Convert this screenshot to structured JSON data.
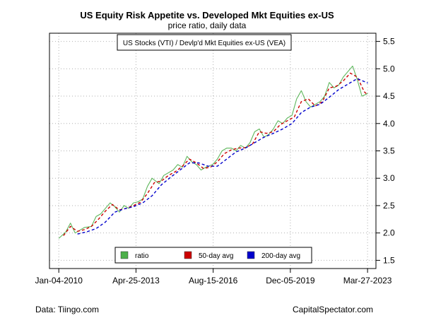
{
  "chart_data": {
    "type": "line",
    "title": "US Equity Risk Appetite vs. Developed Mkt Equities ex-US",
    "subtitle": "price ratio, daily data",
    "annotation": "US Stocks (VTI) / Devlp'd Mkt Equities ex-US (VEA)",
    "xlabel": "",
    "ylabel": "",
    "x_ticks": [
      "Jan-04-2010",
      "Apr-25-2013",
      "Aug-15-2016",
      "Dec-05-2019",
      "Mar-27-2023"
    ],
    "y_ticks": [
      1.5,
      2.0,
      2.5,
      3.0,
      3.5,
      4.0,
      4.5,
      5.0,
      5.5
    ],
    "ylim": [
      1.35,
      5.65
    ],
    "xlim": [
      2009.6,
      2023.6
    ],
    "grid": true,
    "legend_position": "bottom-center",
    "series": [
      {
        "name": "ratio",
        "color": "#4daf4a",
        "x": [
          2010.0,
          2010.3,
          2010.5,
          2010.7,
          2010.9,
          2011.1,
          2011.4,
          2011.6,
          2011.8,
          2012.0,
          2012.2,
          2012.4,
          2012.6,
          2012.8,
          2013.0,
          2013.2,
          2013.4,
          2013.6,
          2013.8,
          2014.0,
          2014.3,
          2014.5,
          2014.7,
          2014.9,
          2015.1,
          2015.3,
          2015.5,
          2015.7,
          2015.9,
          2016.1,
          2016.3,
          2016.6,
          2016.8,
          2017.0,
          2017.2,
          2017.4,
          2017.6,
          2017.8,
          2018.0,
          2018.2,
          2018.4,
          2018.6,
          2018.8,
          2019.0,
          2019.2,
          2019.4,
          2019.6,
          2019.8,
          2020.0,
          2020.2,
          2020.4,
          2020.6,
          2020.8,
          2021.0,
          2021.2,
          2021.4,
          2021.6,
          2021.8,
          2022.0,
          2022.2,
          2022.4,
          2022.6,
          2022.8,
          2023.0,
          2023.25
        ],
        "values": [
          1.9,
          2.02,
          2.18,
          2.0,
          2.05,
          2.1,
          2.12,
          2.3,
          2.35,
          2.45,
          2.55,
          2.48,
          2.38,
          2.5,
          2.45,
          2.55,
          2.57,
          2.62,
          2.85,
          3.0,
          2.9,
          3.05,
          3.1,
          3.15,
          3.25,
          3.2,
          3.4,
          3.3,
          3.25,
          3.15,
          3.2,
          3.25,
          3.35,
          3.5,
          3.55,
          3.55,
          3.5,
          3.6,
          3.55,
          3.65,
          3.85,
          3.9,
          3.75,
          3.8,
          3.9,
          4.05,
          4.0,
          4.1,
          4.15,
          4.45,
          4.6,
          4.4,
          4.3,
          4.35,
          4.4,
          4.5,
          4.75,
          4.65,
          4.7,
          4.85,
          4.95,
          5.05,
          4.8,
          4.5,
          4.55
        ]
      },
      {
        "name": "50-day avg",
        "color": "#cc0000",
        "x": [
          2010.2,
          2010.5,
          2010.8,
          2011.1,
          2011.4,
          2011.7,
          2012.0,
          2012.3,
          2012.6,
          2012.9,
          2013.2,
          2013.5,
          2013.8,
          2014.1,
          2014.4,
          2014.7,
          2015.0,
          2015.3,
          2015.6,
          2015.9,
          2016.2,
          2016.5,
          2016.8,
          2017.1,
          2017.4,
          2017.7,
          2018.0,
          2018.3,
          2018.6,
          2018.9,
          2019.2,
          2019.5,
          2019.8,
          2020.1,
          2020.4,
          2020.7,
          2021.0,
          2021.3,
          2021.6,
          2021.9,
          2022.2,
          2022.5,
          2022.8,
          2023.1,
          2023.25
        ],
        "values": [
          1.95,
          2.12,
          2.03,
          2.06,
          2.12,
          2.25,
          2.4,
          2.52,
          2.42,
          2.45,
          2.5,
          2.56,
          2.72,
          2.92,
          2.95,
          3.05,
          3.12,
          3.22,
          3.35,
          3.28,
          3.18,
          3.2,
          3.3,
          3.45,
          3.52,
          3.55,
          3.56,
          3.62,
          3.85,
          3.82,
          3.85,
          3.98,
          4.05,
          4.12,
          4.4,
          4.45,
          4.32,
          4.4,
          4.65,
          4.68,
          4.78,
          4.92,
          4.85,
          4.58,
          4.52
        ]
      },
      {
        "name": "200-day avg",
        "color": "#0000cc",
        "x": [
          2010.8,
          2011.2,
          2011.6,
          2012.0,
          2012.4,
          2012.8,
          2013.2,
          2013.6,
          2014.0,
          2014.4,
          2014.8,
          2015.2,
          2015.6,
          2016.0,
          2016.4,
          2016.8,
          2017.2,
          2017.6,
          2018.0,
          2018.4,
          2018.8,
          2019.2,
          2019.6,
          2020.0,
          2020.4,
          2020.8,
          2021.2,
          2021.6,
          2022.0,
          2022.4,
          2022.8,
          2023.25
        ],
        "values": [
          1.98,
          2.02,
          2.08,
          2.2,
          2.38,
          2.44,
          2.48,
          2.55,
          2.68,
          2.88,
          3.02,
          3.15,
          3.28,
          3.28,
          3.22,
          3.22,
          3.35,
          3.48,
          3.55,
          3.65,
          3.75,
          3.82,
          3.9,
          4.0,
          4.2,
          4.3,
          4.35,
          4.48,
          4.62,
          4.72,
          4.82,
          4.74
        ]
      }
    ]
  },
  "footer": {
    "source": "Data: Tiingo.com",
    "credit": "CapitalSpectator.com"
  }
}
